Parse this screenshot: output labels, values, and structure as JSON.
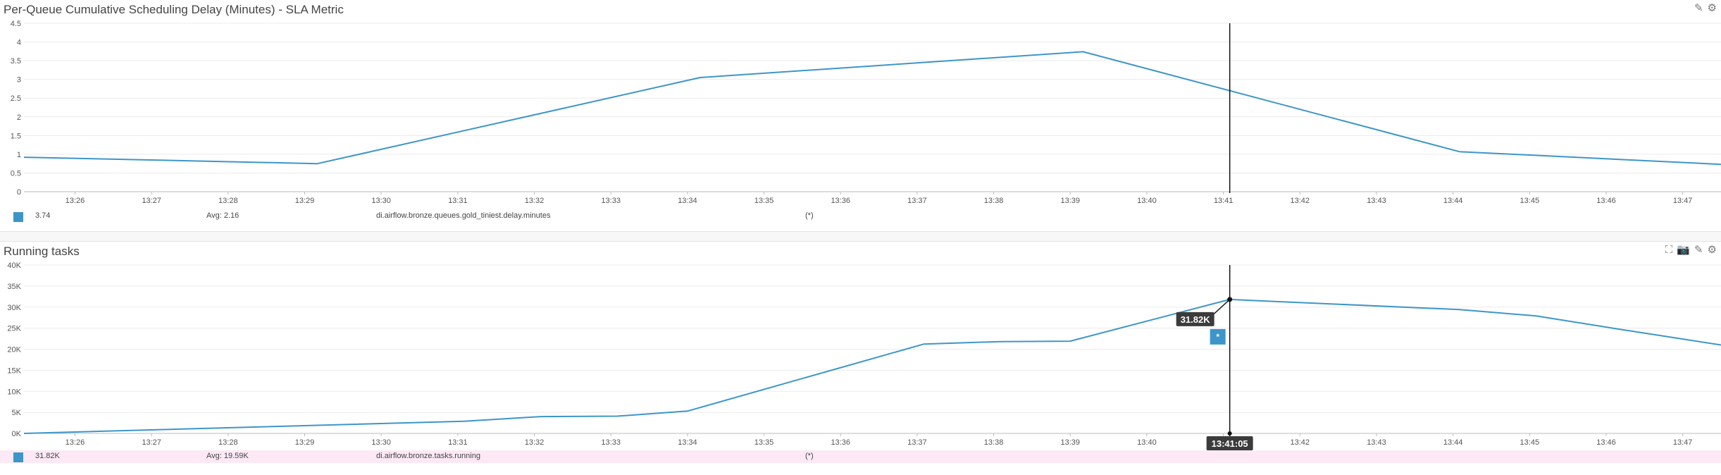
{
  "colors": {
    "series": "#3d96c9",
    "cursor": "#111111",
    "grid": "#ececec",
    "legend_highlight": "#fce9f5"
  },
  "icons": {
    "pencil": "✎",
    "gear": "⚙",
    "expand": "⛶",
    "camera": "📷"
  },
  "panels": [
    {
      "title": "Per-Queue Cumulative Scheduling Delay (Minutes) - SLA Metric",
      "legend": {
        "value": "3.74",
        "avg": "Avg: 2.16",
        "metric": "di.airflow.bronze.queues.gold_tiniest.delay.minutes",
        "scope": "(*)"
      }
    },
    {
      "title": "Running tasks",
      "legend": {
        "value": "31.82K",
        "avg": "Avg: 19.59K",
        "metric": "di.airflow.bronze.tasks.running",
        "scope": "(*)"
      },
      "tooltip": {
        "value": "31.82K",
        "time": "13:41:05",
        "marker": "*"
      }
    }
  ],
  "chart_data": [
    {
      "type": "line",
      "title": "Per-Queue Cumulative Scheduling Delay (Minutes) - SLA Metric",
      "xlabel": "",
      "ylabel": "",
      "x_tick_labels": [
        "13:26",
        "13:27",
        "13:28",
        "13:29",
        "13:30",
        "13:31",
        "13:32",
        "13:33",
        "13:34",
        "13:35",
        "13:36",
        "13:37",
        "13:38",
        "13:39",
        "13:40",
        "13:41",
        "13:42",
        "13:43",
        "13:44",
        "13:45",
        "13:46",
        "13:47"
      ],
      "y_tick_labels": [
        "0",
        "0.5",
        "1",
        "1.5",
        "2",
        "2.5",
        "3",
        "3.5",
        "4",
        "4.5"
      ],
      "ylim": [
        0,
        4.5
      ],
      "xlim": [
        "13:25:20",
        "13:47:30"
      ],
      "grid": true,
      "cursor_time": "13:41:05",
      "series": [
        {
          "x": [
            "13:25:20",
            "13:29:10",
            "13:34:10",
            "13:39:10",
            "13:44:05",
            "13:47:30"
          ],
          "values": [
            0.92,
            0.75,
            3.05,
            3.74,
            1.07,
            0.73
          ]
        }
      ]
    },
    {
      "type": "line",
      "title": "Running tasks",
      "xlabel": "",
      "ylabel": "",
      "x_tick_labels": [
        "13:26",
        "13:27",
        "13:28",
        "13:29",
        "13:30",
        "13:31",
        "13:32",
        "13:33",
        "13:34",
        "13:35",
        "13:36",
        "13:37",
        "13:38",
        "13:39",
        "13:40",
        "13:41",
        "13:42",
        "13:43",
        "13:44",
        "13:45",
        "13:46",
        "13:47"
      ],
      "y_tick_labels": [
        "0K",
        "5K",
        "10K",
        "15K",
        "20K",
        "25K",
        "30K",
        "35K",
        "40K"
      ],
      "ylim": [
        0,
        40000
      ],
      "xlim": [
        "13:25:20",
        "13:47:30"
      ],
      "grid": true,
      "cursor_time": "13:41:05",
      "series": [
        {
          "x": [
            "13:25:20",
            "13:31:05",
            "13:32:05",
            "13:33:05",
            "13:34:00",
            "13:37:05",
            "13:38:05",
            "13:39:00",
            "13:41:05",
            "13:44:05",
            "13:45:05",
            "13:46:05",
            "13:47:30"
          ],
          "values": [
            0,
            2900,
            4000,
            4100,
            5300,
            21200,
            21800,
            21900,
            31820,
            29400,
            27900,
            25000,
            21000
          ]
        }
      ]
    }
  ]
}
